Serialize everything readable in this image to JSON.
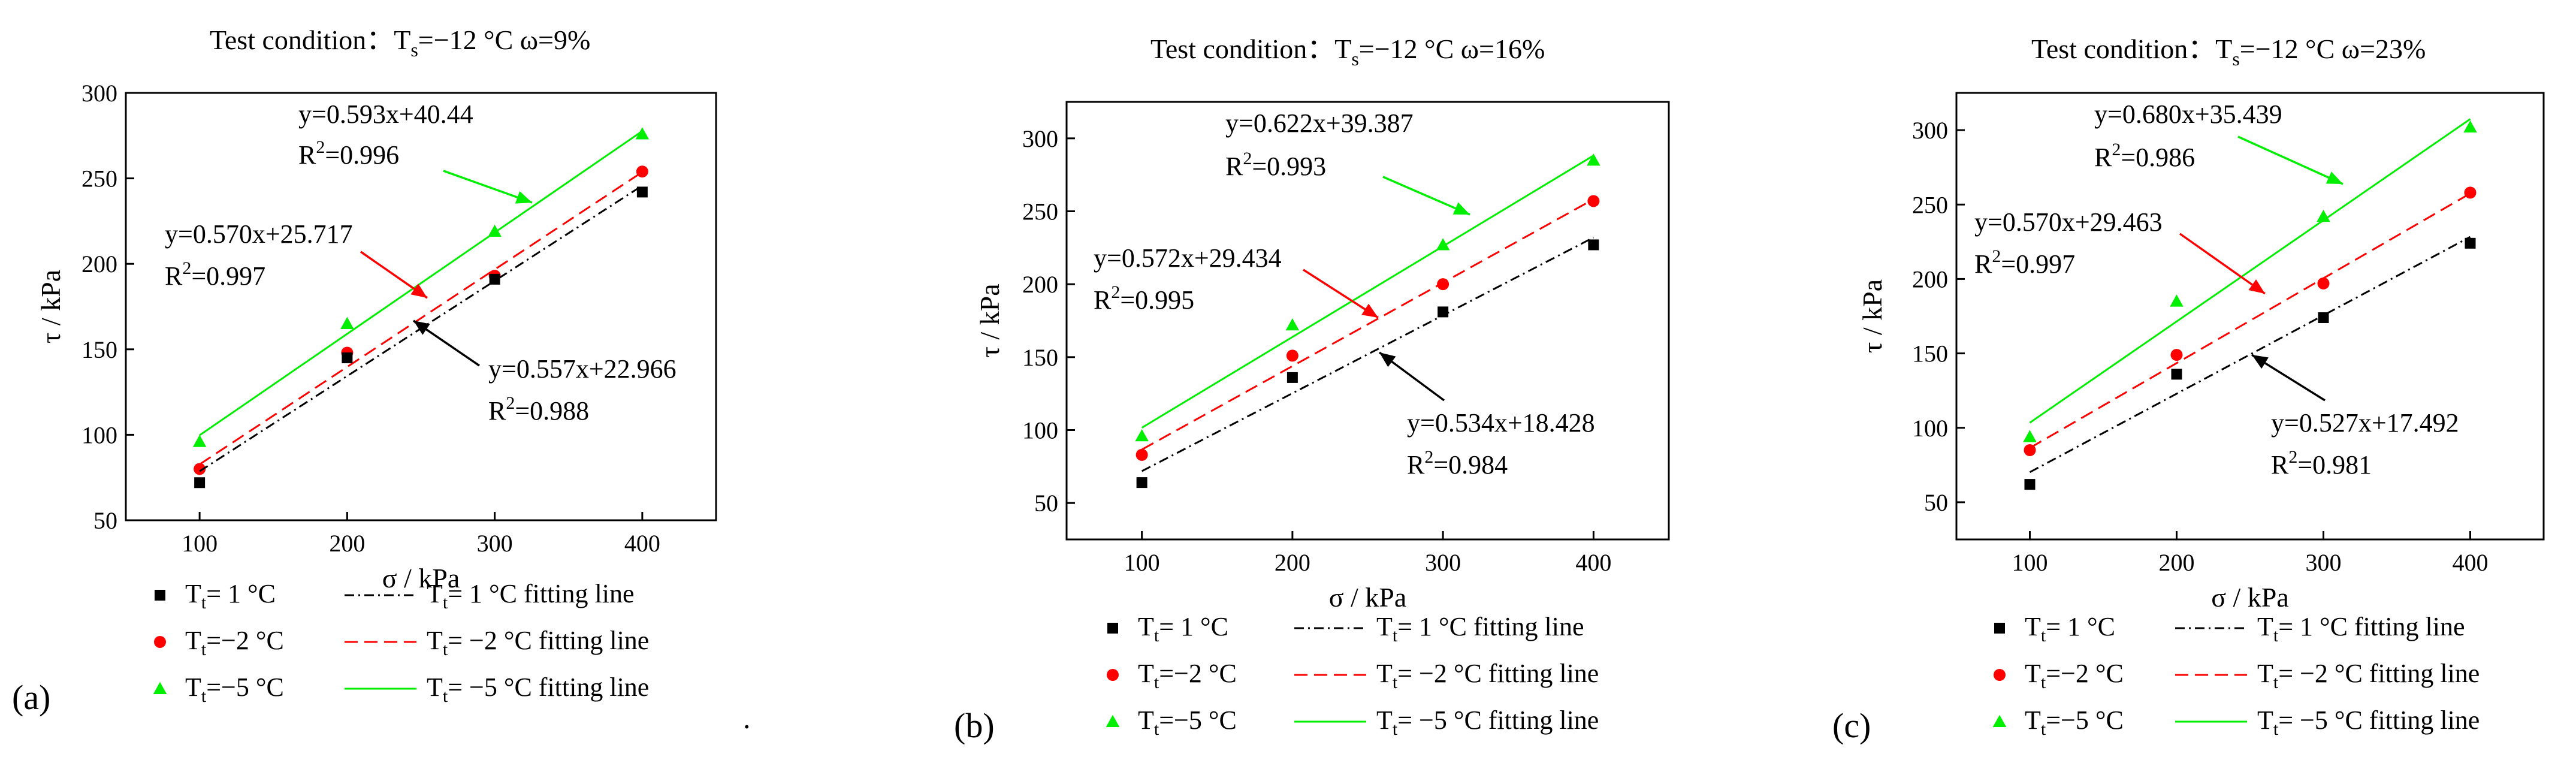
{
  "chart_data": [
    {
      "type": "scatter",
      "panel_label": "(a)",
      "title_prefix": "Test condition：T",
      "title_sub": "s",
      "title_suffix": "=−12 °C   ω=9%",
      "xlabel": "σ / kPa",
      "ylabel": "τ / kPa",
      "xlim": [
        50,
        450
      ],
      "ylim": [
        50,
        300
      ],
      "xticks": [
        100,
        200,
        300,
        400
      ],
      "yticks": [
        50,
        100,
        150,
        200,
        250,
        300
      ],
      "series": [
        {
          "name": "Tt=-5 °C",
          "color": "#00ee00",
          "marker": "triangle",
          "x": [
            100,
            200,
            300,
            400
          ],
          "y": [
            96,
            165,
            219,
            276
          ],
          "fit": {
            "slope": 0.593,
            "intercept": 40.44,
            "dash": "solid",
            "eq": "y=0.593x+40.44",
            "r2": "=0.996"
          }
        },
        {
          "name": "Tt=-2 °C",
          "color": "#ff0000",
          "marker": "circle",
          "x": [
            100,
            200,
            300,
            400
          ],
          "y": [
            80,
            148,
            193,
            254
          ],
          "fit": {
            "slope": 0.57,
            "intercept": 25.717,
            "dash": "dashed",
            "eq": "y=0.570x+25.717",
            "r2": "=0.997"
          }
        },
        {
          "name": "Tt=1 °C",
          "color": "#000000",
          "marker": "square",
          "x": [
            100,
            200,
            300,
            400
          ],
          "y": [
            72,
            145,
            191,
            242
          ],
          "fit": {
            "slope": 0.557,
            "intercept": 22.966,
            "dash": "dashdot",
            "eq": "y=0.557x+22.966",
            "r2": "=0.988"
          }
        }
      ]
    },
    {
      "type": "scatter",
      "panel_label": "(b)",
      "title_prefix": "Test condition：T",
      "title_sub": "s",
      "title_suffix": "=−12 °C   ω=16%",
      "xlabel": "σ / kPa",
      "ylabel": "τ / kPa",
      "xlim": [
        50,
        450
      ],
      "ylim": [
        25,
        325
      ],
      "xticks": [
        100,
        200,
        300,
        400
      ],
      "yticks": [
        50,
        100,
        150,
        200,
        250,
        300
      ],
      "series": [
        {
          "name": "Tt=-5 °C",
          "color": "#00ee00",
          "marker": "triangle",
          "x": [
            100,
            200,
            300,
            400
          ],
          "y": [
            96,
            172,
            227,
            285
          ],
          "fit": {
            "slope": 0.622,
            "intercept": 39.387,
            "dash": "solid",
            "eq": "y=0.622x+39.387",
            "r2": "=0.993"
          }
        },
        {
          "name": "Tt=-2 °C",
          "color": "#ff0000",
          "marker": "circle",
          "x": [
            100,
            200,
            300,
            400
          ],
          "y": [
            83,
            151,
            200,
            257
          ],
          "fit": {
            "slope": 0.572,
            "intercept": 29.434,
            "dash": "dashed",
            "eq": "y=0.572x+29.434",
            "r2": "=0.995"
          }
        },
        {
          "name": "Tt=1 °C",
          "color": "#000000",
          "marker": "square",
          "x": [
            100,
            200,
            300,
            400
          ],
          "y": [
            64,
            136,
            181,
            227
          ],
          "fit": {
            "slope": 0.534,
            "intercept": 18.428,
            "dash": "dashdot",
            "eq": "y=0.534x+18.428",
            "r2": "=0.984"
          }
        }
      ]
    },
    {
      "type": "scatter",
      "panel_label": "(c)",
      "title_prefix": "Test condition：T",
      "title_sub": "s",
      "title_suffix": "=−12 °C   ω=23%",
      "xlabel": "σ / kPa",
      "ylabel": "τ / kPa",
      "xlim": [
        50,
        450
      ],
      "ylim": [
        25,
        325
      ],
      "xticks": [
        100,
        200,
        300,
        400
      ],
      "yticks": [
        50,
        100,
        150,
        200,
        250,
        300
      ],
      "series": [
        {
          "name": "Tt=-5 °C",
          "color": "#00ee00",
          "marker": "triangle",
          "x": [
            100,
            200,
            300,
            400
          ],
          "y": [
            94,
            185,
            242,
            302
          ],
          "fit": {
            "slope": 0.68,
            "intercept": 35.439,
            "dash": "solid",
            "eq": "y=0.680x+35.439",
            "r2": "=0.986"
          }
        },
        {
          "name": "Tt=-2 °C",
          "color": "#ff0000",
          "marker": "circle",
          "x": [
            100,
            200,
            300,
            400
          ],
          "y": [
            85,
            149,
            197,
            258
          ],
          "fit": {
            "slope": 0.57,
            "intercept": 29.463,
            "dash": "dashed",
            "eq": "y=0.570x+29.463",
            "r2": "=0.997"
          }
        },
        {
          "name": "Tt=1 °C",
          "color": "#000000",
          "marker": "square",
          "x": [
            100,
            200,
            300,
            400
          ],
          "y": [
            62,
            136,
            174,
            224
          ],
          "fit": {
            "slope": 0.527,
            "intercept": 17.492,
            "dash": "dashdot",
            "eq": "y=0.527x+17.492",
            "r2": "=0.981"
          }
        }
      ]
    }
  ],
  "legend": {
    "marker_items": [
      {
        "series_index": 2,
        "lhs": "T",
        "sub": "t",
        "text": "=  1 °C"
      },
      {
        "series_index": 1,
        "lhs": "T",
        "sub": "t",
        "text": "=−2 °C"
      },
      {
        "series_index": 0,
        "lhs": "T",
        "sub": "t",
        "text": "=−5 °C"
      }
    ],
    "line_items": [
      {
        "series_index": 2,
        "lhs": "T",
        "sub": "t",
        "text": "=   1 °C fitting line"
      },
      {
        "series_index": 1,
        "lhs": "T",
        "sub": "t",
        "text": "= −2 °C fitting line"
      },
      {
        "series_index": 0,
        "lhs": "T",
        "sub": "t",
        "text": "= −5 °C fitting line"
      }
    ]
  },
  "r2_label": "R",
  "r2_sup": "2",
  "stray_mark": "."
}
